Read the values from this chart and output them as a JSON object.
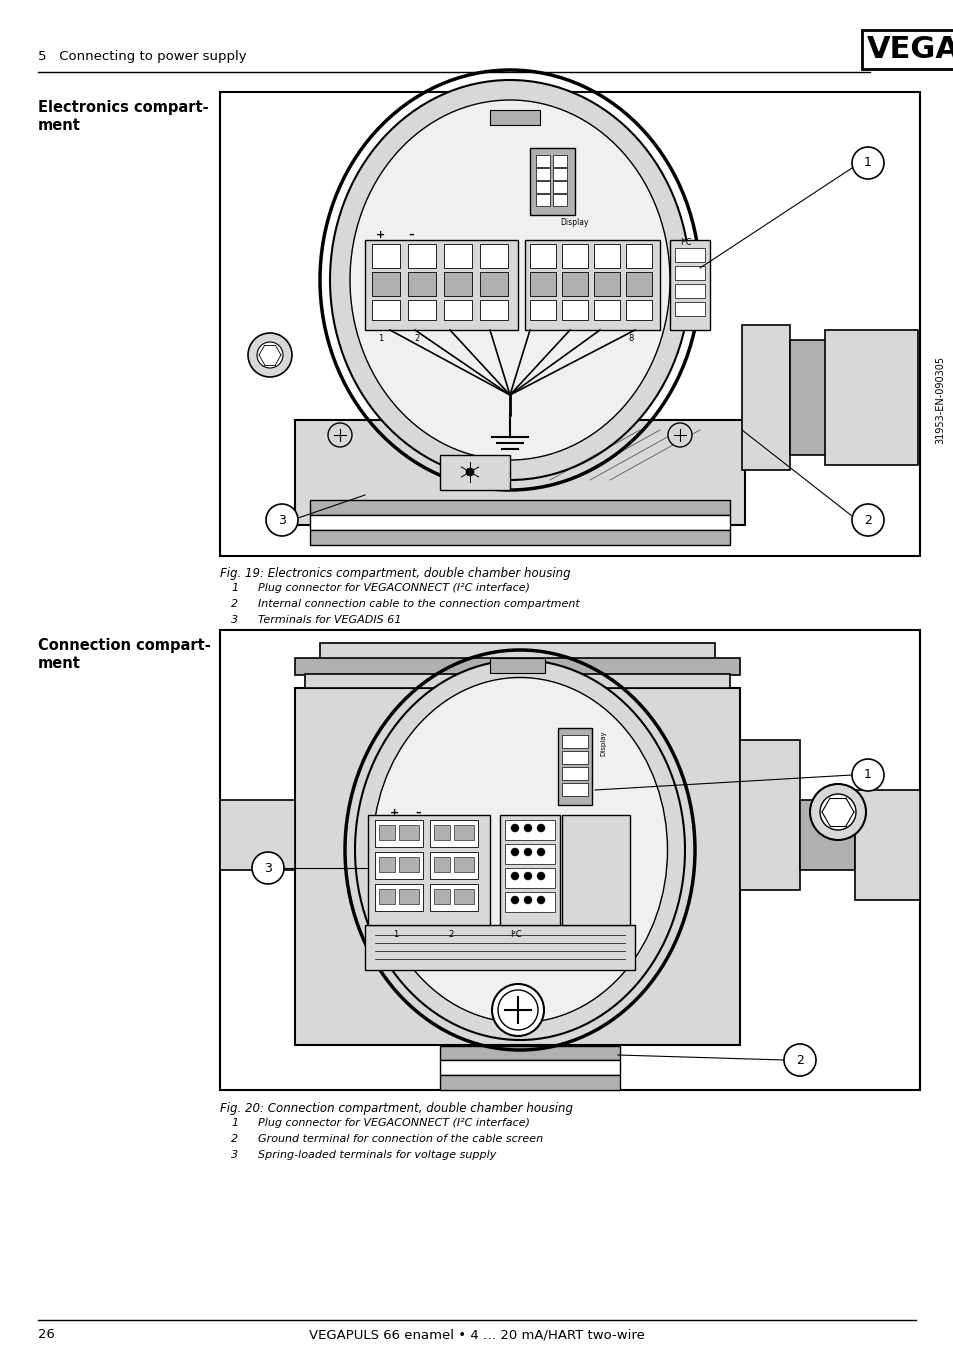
{
  "page_bg": "#ffffff",
  "header_text": "5   Connecting to power supply",
  "vega_logo_text": "VEGA",
  "footer_text": "VEGAPULS 66 enamel • 4 … 20 mA/HART two-wire",
  "footer_page": "26",
  "sidebar_text": "31953-EN-090305",
  "section1_label": "Electronics compart-\nment",
  "section2_label": "Connection compart-\nment",
  "fig1_caption": "Fig. 19: Electronics compartment, double chamber housing",
  "fig1_item1": "1    Plug connector for VEGACONNECT (I²C interface)",
  "fig1_item2": "2    Internal connection cable to the connection compartment",
  "fig1_item3": "3    Terminals for VEGADIS 61",
  "fig2_caption": "Fig. 20: Connection compartment, double chamber housing",
  "fig2_item1": "1    Plug connector for VEGACONNECT (I²C interface)",
  "fig2_item2": "2    Ground terminal for connection of the cable screen",
  "fig2_item3": "3    Spring-loaded terminals for voltage supply",
  "text_color": "#000000",
  "gray_light": "#d8d8d8",
  "gray_mid": "#b0b0b0",
  "gray_dark": "#888888"
}
